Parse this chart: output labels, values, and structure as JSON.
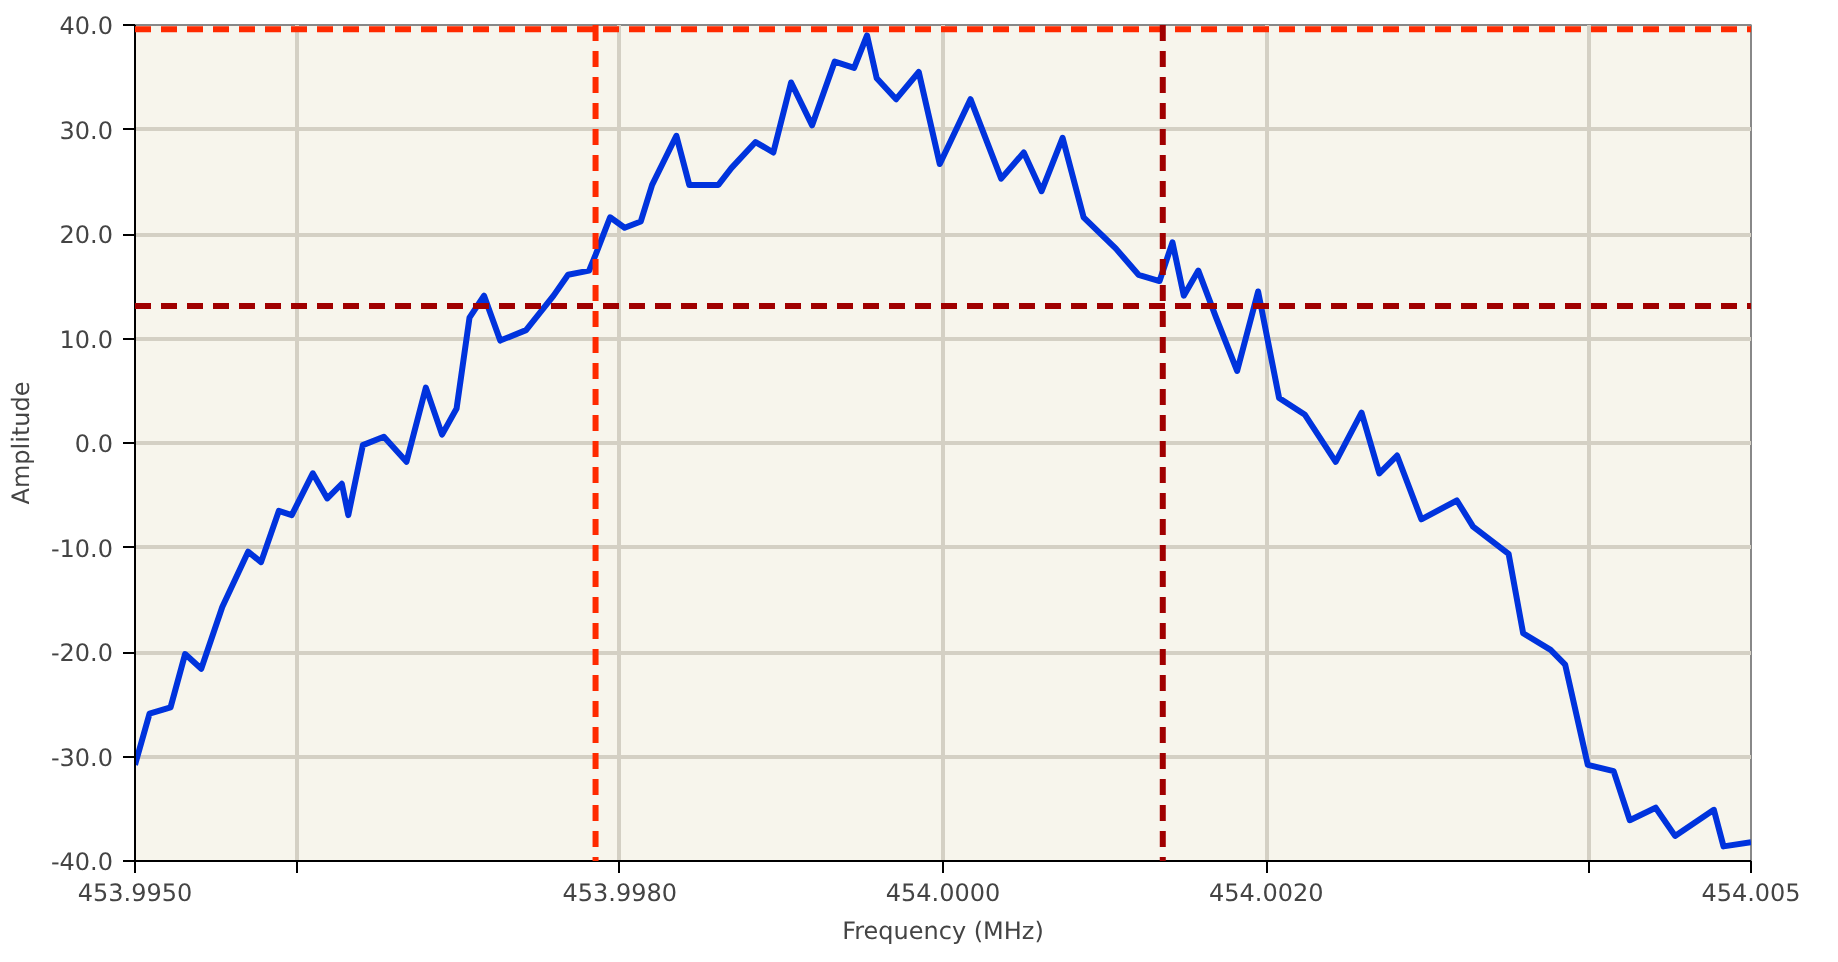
{
  "chart_data": {
    "type": "line",
    "xlabel": "Frequency (MHz)",
    "ylabel": "Amplitude",
    "xlim": [
      453.995,
      454.005
    ],
    "ylim": [
      -40,
      40
    ],
    "xticks": [
      {
        "value": 453.995,
        "label": "453.9950"
      },
      {
        "value": 453.996,
        "label": null
      },
      {
        "value": 453.998,
        "label": "453.9980"
      },
      {
        "value": 454.0,
        "label": "454.0000"
      },
      {
        "value": 454.002,
        "label": "454.0020"
      },
      {
        "value": 454.004,
        "label": null
      },
      {
        "value": 454.005,
        "label": "454.005"
      }
    ],
    "yticks": [
      {
        "value": -40,
        "label": "-40.0"
      },
      {
        "value": -30,
        "label": "-30.0"
      },
      {
        "value": -20,
        "label": "-20.0"
      },
      {
        "value": -10,
        "label": "-10.0"
      },
      {
        "value": 0,
        "label": "0.0"
      },
      {
        "value": 10,
        "label": "10.0"
      },
      {
        "value": 20,
        "label": "20.0"
      },
      {
        "value": 30,
        "label": "30.0"
      },
      {
        "value": 40,
        "label": "40.0"
      }
    ],
    "grid": true,
    "line_style": "solid",
    "marker": "none",
    "series": [
      {
        "color": "#0033dd",
        "x": [
          453.995,
          453.99509,
          453.99522,
          453.99531,
          453.99541,
          453.99554,
          453.9957,
          453.99578,
          453.99589,
          453.99597,
          453.9961,
          453.99619,
          453.99628,
          453.99632,
          453.99641,
          453.99654,
          453.99668,
          453.9968,
          453.9969,
          453.99699,
          453.99707,
          453.99716,
          453.99726,
          453.99742,
          453.99759,
          453.99768,
          453.99781,
          453.99785,
          453.99794,
          453.99803,
          453.99813,
          453.9982,
          453.99835,
          453.99843,
          453.99861,
          453.99869,
          453.99884,
          453.99895,
          453.99906,
          453.99919,
          453.99933,
          453.99945,
          453.99953,
          453.99959,
          453.99971,
          453.99985,
          453.99998,
          454.00017,
          454.00036,
          454.0005,
          454.00061,
          454.00074,
          454.00087,
          454.00107,
          454.00121,
          454.00134,
          454.00142,
          454.00149,
          454.00158,
          454.00169,
          454.00182,
          454.00195,
          454.00208,
          454.00224,
          454.00243,
          454.00259,
          454.0027,
          454.00281,
          454.00296,
          454.00318,
          454.00328,
          454.0035,
          454.00359,
          454.00376,
          454.00385,
          454.00399,
          454.00415,
          454.00425,
          454.00441,
          454.00453,
          454.00477,
          454.00483,
          454.005
        ],
        "values": [
          -30.8,
          -25.9,
          -25.3,
          -20.2,
          -21.6,
          -15.7,
          -10.4,
          -11.4,
          -6.5,
          -6.9,
          -2.9,
          -5.3,
          -3.9,
          -6.9,
          -0.2,
          0.6,
          -1.8,
          5.3,
          0.8,
          3.3,
          12.0,
          14.1,
          9.8,
          10.8,
          14.1,
          16.1,
          16.5,
          18.0,
          21.6,
          20.6,
          21.2,
          24.7,
          29.4,
          24.7,
          24.7,
          26.3,
          28.8,
          27.8,
          34.5,
          30.4,
          36.5,
          35.9,
          39.0,
          34.9,
          32.9,
          35.5,
          26.7,
          32.9,
          25.3,
          27.8,
          24.1,
          29.2,
          21.6,
          18.6,
          16.1,
          15.5,
          19.2,
          14.1,
          16.5,
          12.0,
          6.9,
          14.5,
          4.3,
          2.7,
          -1.8,
          2.9,
          -2.9,
          -1.2,
          -7.3,
          -5.5,
          -8.0,
          -10.6,
          -18.2,
          -19.8,
          -21.2,
          -30.8,
          -31.4,
          -36.1,
          -34.9,
          -37.6,
          -35.1,
          -38.6,
          -38.2
        ]
      }
    ],
    "ref_lines": [
      {
        "axis": "y",
        "value": 39.6,
        "color": "#ff2a00",
        "line_style": "dashed"
      },
      {
        "axis": "x",
        "value": 453.99785,
        "color": "#ff2a00",
        "line_style": "dashed"
      },
      {
        "axis": "y",
        "value": 13.1,
        "color": "#a00000",
        "line_style": "dashed"
      },
      {
        "axis": "x",
        "value": 454.00136,
        "color": "#a00000",
        "line_style": "dashed"
      }
    ]
  }
}
